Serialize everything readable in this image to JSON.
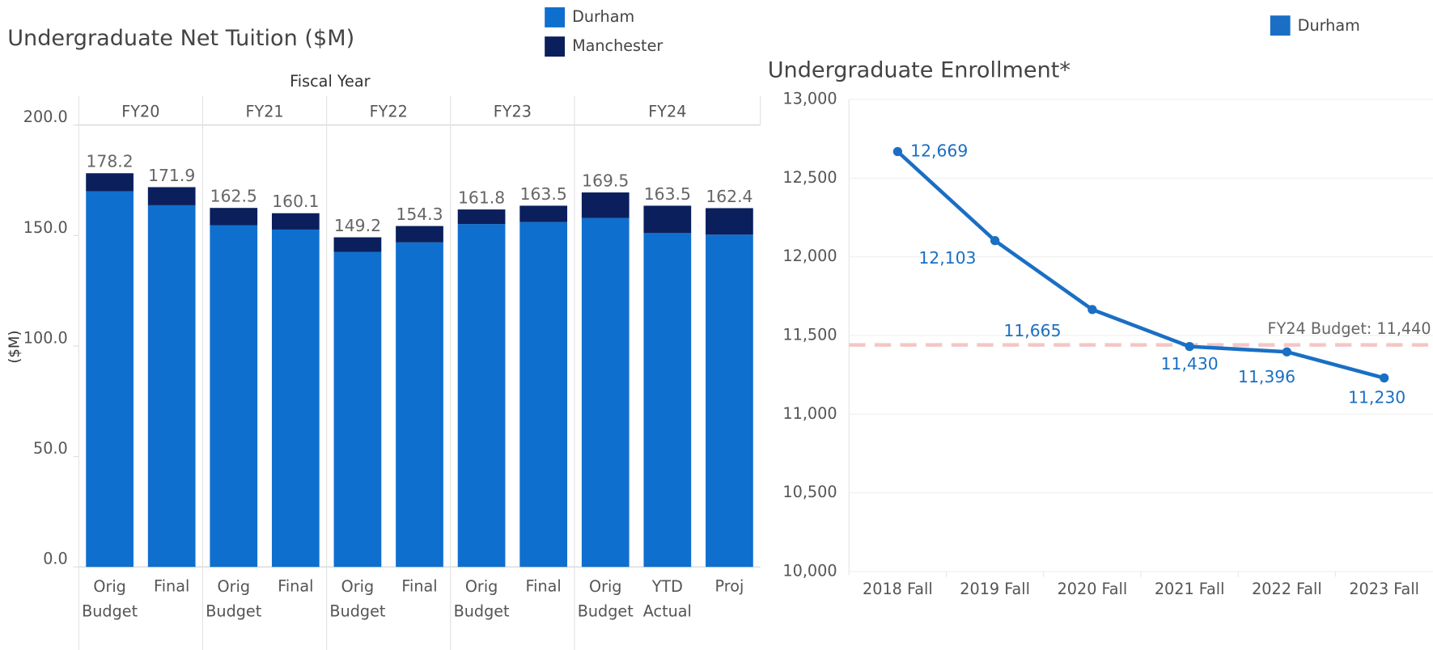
{
  "chart_data": [
    {
      "type": "bar",
      "stacked": true,
      "title": "Undergraduate Net Tuition ($M)",
      "group_axis_label": "Fiscal Year",
      "ylabel": "($M)",
      "groups": [
        {
          "name": "FY20",
          "categories": [
            "Orig Budget",
            "Final"
          ]
        },
        {
          "name": "FY21",
          "categories": [
            "Orig Budget",
            "Final"
          ]
        },
        {
          "name": "FY22",
          "categories": [
            "Orig Budget",
            "Final"
          ]
        },
        {
          "name": "FY23",
          "categories": [
            "Orig Budget",
            "Final"
          ]
        },
        {
          "name": "FY24",
          "categories": [
            "Orig Budget",
            "YTD Actual",
            "Proj"
          ]
        }
      ],
      "series": [
        {
          "name": "Durham",
          "color": "#0f6fcf",
          "values": [
            170.0,
            163.7,
            154.7,
            152.7,
            142.6,
            146.9,
            155.2,
            156.1,
            157.9,
            151.1,
            150.4
          ]
        },
        {
          "name": "Manchester",
          "color": "#0a1f5c",
          "values": [
            8.2,
            8.2,
            7.8,
            7.4,
            6.6,
            7.4,
            6.6,
            7.4,
            11.6,
            12.4,
            12.0
          ]
        }
      ],
      "totals": [
        178.2,
        171.9,
        162.5,
        160.1,
        149.2,
        154.3,
        161.8,
        163.5,
        169.5,
        163.5,
        162.4
      ],
      "ylim": [
        0,
        200
      ],
      "yticks": [
        {
          "value": 0,
          "label": "0.0"
        },
        {
          "value": 50,
          "label": "50.0"
        },
        {
          "value": 100,
          "label": "100.0"
        },
        {
          "value": 150,
          "label": "150.0"
        },
        {
          "value": 200,
          "label": "200.0"
        }
      ]
    },
    {
      "type": "line",
      "title": "Undergraduate Enrollment*",
      "categories": [
        "2018 Fall",
        "2019 Fall",
        "2020 Fall",
        "2021 Fall",
        "2022 Fall",
        "2023 Fall"
      ],
      "series": [
        {
          "name": "Durham",
          "color": "#1a6fc4",
          "values": [
            12669,
            12103,
            11665,
            11430,
            11396,
            11230
          ],
          "value_labels": [
            "12,669",
            "12,103",
            "11,665",
            "11,430",
            "11,396",
            "11,230"
          ]
        }
      ],
      "reference_line": {
        "value": 11440,
        "label": "FY24 Budget: 11,440",
        "color": "#f4c6c6"
      },
      "ylim": [
        10000,
        13000
      ],
      "yticks": [
        {
          "value": 10000,
          "label": "10,000"
        },
        {
          "value": 10500,
          "label": "10,500"
        },
        {
          "value": 11000,
          "label": "11,000"
        },
        {
          "value": 11500,
          "label": "11,500"
        },
        {
          "value": 12000,
          "label": "12,000"
        },
        {
          "value": 12500,
          "label": "12,500"
        },
        {
          "value": 13000,
          "label": "13,000"
        }
      ],
      "grid": true
    }
  ]
}
